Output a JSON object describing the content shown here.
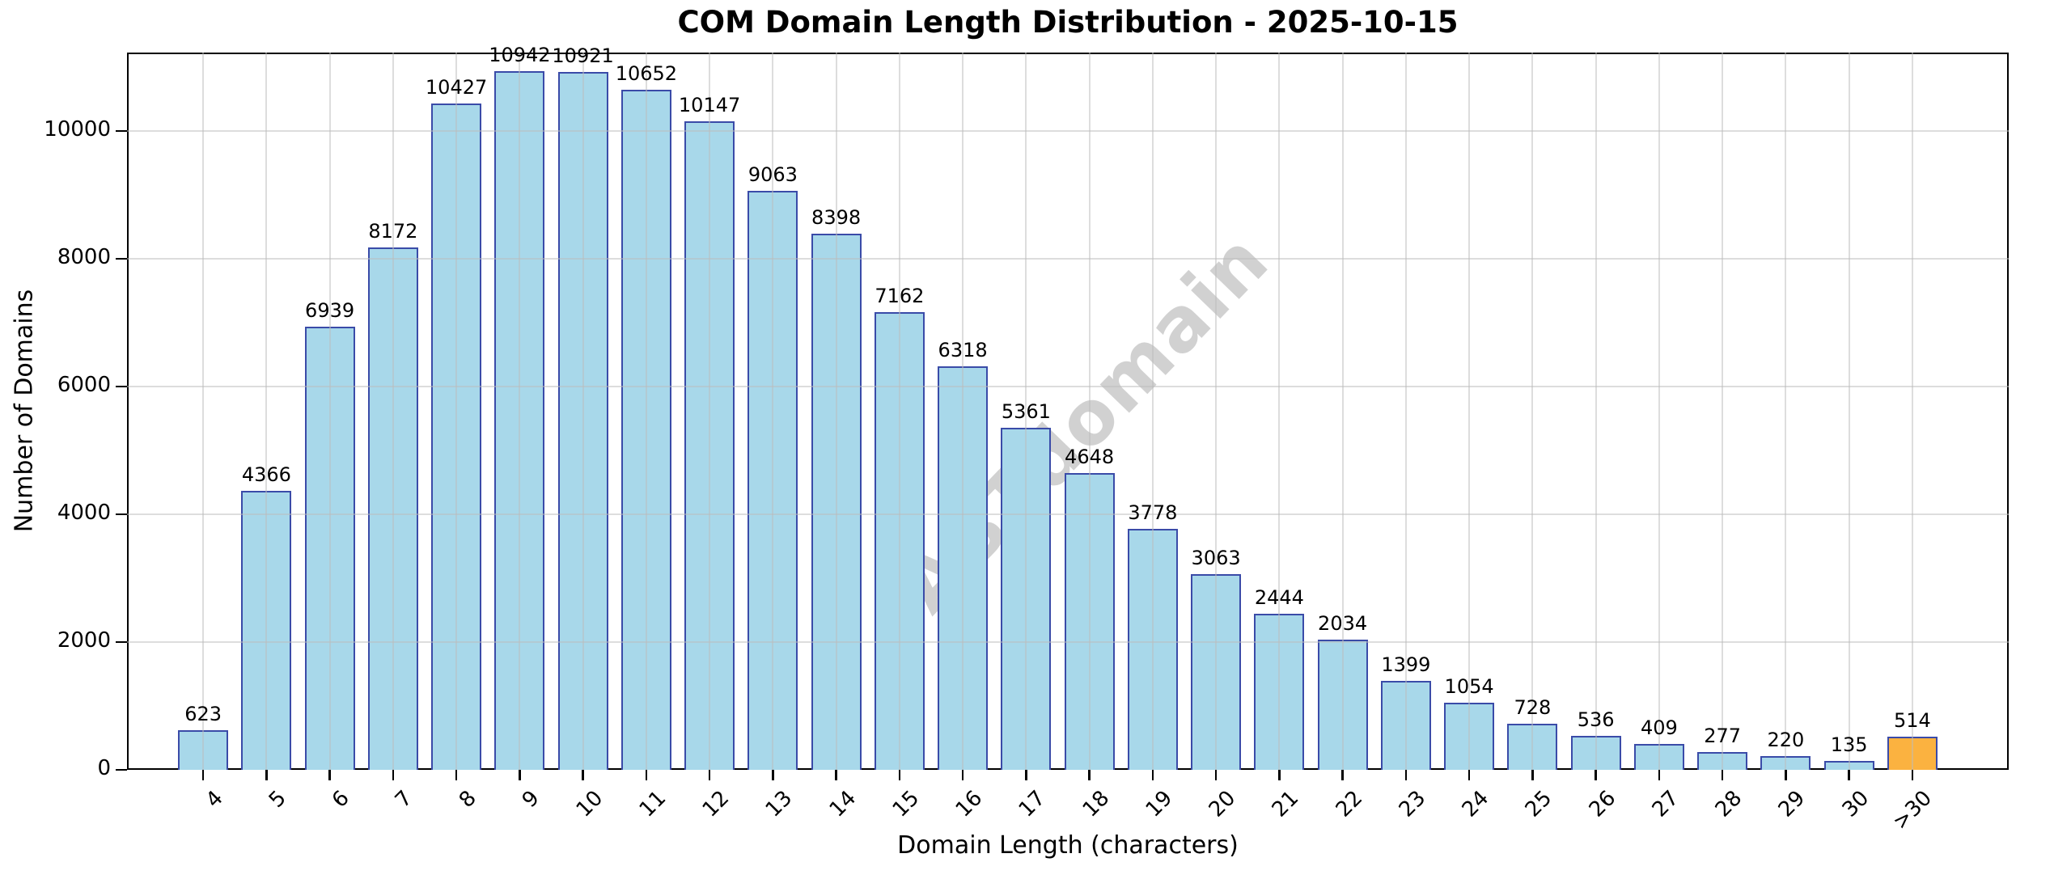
{
  "chart_data": {
    "type": "bar",
    "title": "COM Domain Length Distribution - 2025-10-15",
    "xlabel": "Domain Length (characters)",
    "ylabel": "Number of Domains",
    "categories": [
      "4",
      "5",
      "6",
      "7",
      "8",
      "9",
      "10",
      "11",
      "12",
      "13",
      "14",
      "15",
      "16",
      "17",
      "18",
      "19",
      "20",
      "21",
      "22",
      "23",
      "24",
      "25",
      "26",
      "27",
      "28",
      "29",
      "30",
      ">30"
    ],
    "values": [
      623,
      4366,
      6939,
      8172,
      10427,
      10942,
      10921,
      10652,
      10147,
      9063,
      8398,
      7162,
      6318,
      5361,
      4648,
      3778,
      3063,
      2444,
      2034,
      1399,
      1054,
      728,
      536,
      409,
      277,
      220,
      135,
      514
    ],
    "ylim": [
      0,
      11228
    ],
    "yticks": [
      0,
      2000,
      4000,
      6000,
      8000,
      10000
    ],
    "grid": true,
    "legend": "none",
    "highlight_category": ">30",
    "colors": {
      "bar_fill": "#A8D8EA",
      "bar_edge": "#3A4BA8",
      "highlight_fill": "#FBB240",
      "grid": "#bbbbbb",
      "spine": "#000000",
      "background": "#ffffff"
    }
  },
  "watermark": {
    "text": "ABTdomain"
  }
}
